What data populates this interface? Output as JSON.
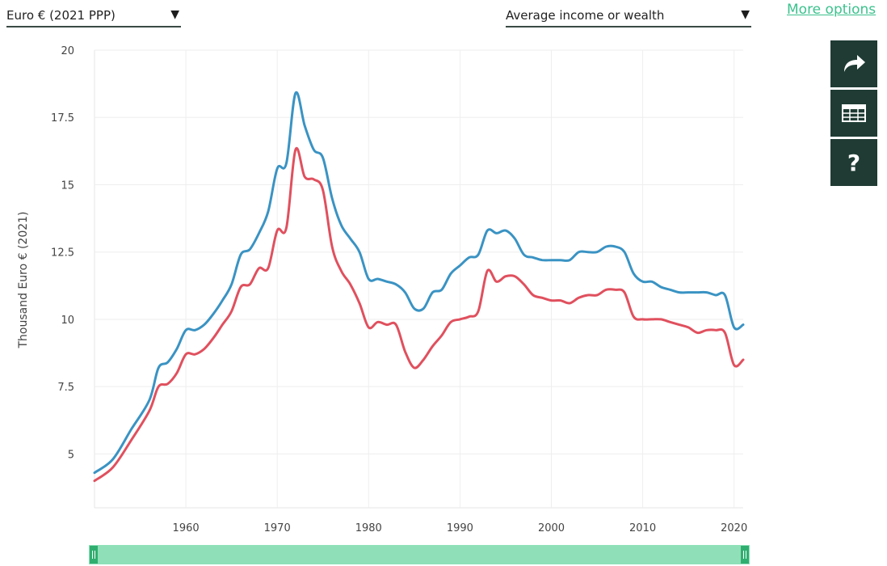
{
  "controls": {
    "unit_select": "Euro € (2021 PPP)",
    "measure_select": "Average income or wealth",
    "more_options": "More options",
    "help_glyph": "?"
  },
  "icons": {
    "share": "share-arrow-icon",
    "table": "table-grid-icon",
    "help": "question-mark-icon"
  },
  "colors": {
    "series_blue": "#3a93c3",
    "series_red": "#e0505e",
    "panel_dark": "#1f3b34",
    "accent_green": "#3cc28e"
  },
  "chart_data": {
    "type": "line",
    "ylabel": "Thousand Euro € (2021)",
    "xlabel": "",
    "xlim": [
      1950,
      2021
    ],
    "ylim": [
      3,
      20
    ],
    "yticks": [
      5,
      7.5,
      10,
      12.5,
      15,
      17.5,
      20
    ],
    "ytick_labels": [
      "5",
      "7.5",
      "10",
      "12.5",
      "15",
      "17.5",
      "20"
    ],
    "xticks": [
      1960,
      1970,
      1980,
      1990,
      2000,
      2010,
      2020
    ],
    "xtick_labels": [
      "1960",
      "1970",
      "1980",
      "1990",
      "2000",
      "2010",
      "2020"
    ],
    "grid": true,
    "series": [
      {
        "color": "#3a93c3",
        "x": [
          1950,
          1952,
          1954,
          1956,
          1957,
          1958,
          1959,
          1960,
          1961,
          1962,
          1963,
          1964,
          1965,
          1966,
          1967,
          1968,
          1969,
          1970,
          1971,
          1972,
          1973,
          1974,
          1975,
          1976,
          1977,
          1978,
          1979,
          1980,
          1981,
          1982,
          1983,
          1984,
          1985,
          1986,
          1987,
          1988,
          1989,
          1990,
          1991,
          1992,
          1993,
          1994,
          1995,
          1996,
          1997,
          1998,
          1999,
          2000,
          2001,
          2002,
          2003,
          2004,
          2005,
          2006,
          2007,
          2008,
          2009,
          2010,
          2011,
          2012,
          2013,
          2014,
          2015,
          2016,
          2017,
          2018,
          2019,
          2020,
          2021
        ],
        "values": [
          4.3,
          4.8,
          5.9,
          7.0,
          8.2,
          8.4,
          8.9,
          9.6,
          9.6,
          9.8,
          10.2,
          10.7,
          11.3,
          12.4,
          12.6,
          13.2,
          14.0,
          15.6,
          15.8,
          18.4,
          17.2,
          16.3,
          16.0,
          14.5,
          13.5,
          13.0,
          12.5,
          11.5,
          11.5,
          11.4,
          11.3,
          11.0,
          10.4,
          10.4,
          11.0,
          11.1,
          11.7,
          12.0,
          12.3,
          12.4,
          13.3,
          13.2,
          13.3,
          13.0,
          12.4,
          12.3,
          12.2,
          12.2,
          12.2,
          12.2,
          12.5,
          12.5,
          12.5,
          12.7,
          12.7,
          12.5,
          11.7,
          11.4,
          11.4,
          11.2,
          11.1,
          11.0,
          11.0,
          11.0,
          11.0,
          10.9,
          10.9,
          9.7,
          9.8
        ]
      },
      {
        "color": "#e0505e",
        "x": [
          1950,
          1952,
          1954,
          1956,
          1957,
          1958,
          1959,
          1960,
          1961,
          1962,
          1963,
          1964,
          1965,
          1966,
          1967,
          1968,
          1969,
          1970,
          1971,
          1972,
          1973,
          1974,
          1975,
          1976,
          1977,
          1978,
          1979,
          1980,
          1981,
          1982,
          1983,
          1984,
          1985,
          1986,
          1987,
          1988,
          1989,
          1990,
          1991,
          1992,
          1993,
          1994,
          1995,
          1996,
          1997,
          1998,
          1999,
          2000,
          2001,
          2002,
          2003,
          2004,
          2005,
          2006,
          2007,
          2008,
          2009,
          2010,
          2011,
          2012,
          2013,
          2014,
          2015,
          2016,
          2017,
          2018,
          2019,
          2020,
          2021
        ],
        "values": [
          4.0,
          4.5,
          5.5,
          6.6,
          7.5,
          7.6,
          8.0,
          8.7,
          8.7,
          8.9,
          9.3,
          9.8,
          10.3,
          11.2,
          11.3,
          11.9,
          11.9,
          13.3,
          13.4,
          16.3,
          15.3,
          15.2,
          14.8,
          12.7,
          11.8,
          11.3,
          10.6,
          9.7,
          9.9,
          9.8,
          9.8,
          8.8,
          8.2,
          8.5,
          9.0,
          9.4,
          9.9,
          10.0,
          10.1,
          10.3,
          11.8,
          11.4,
          11.6,
          11.6,
          11.3,
          10.9,
          10.8,
          10.7,
          10.7,
          10.6,
          10.8,
          10.9,
          10.9,
          11.1,
          11.1,
          11.0,
          10.1,
          10.0,
          10.0,
          10.0,
          9.9,
          9.8,
          9.7,
          9.5,
          9.6,
          9.6,
          9.5,
          8.3,
          8.5
        ]
      }
    ]
  }
}
